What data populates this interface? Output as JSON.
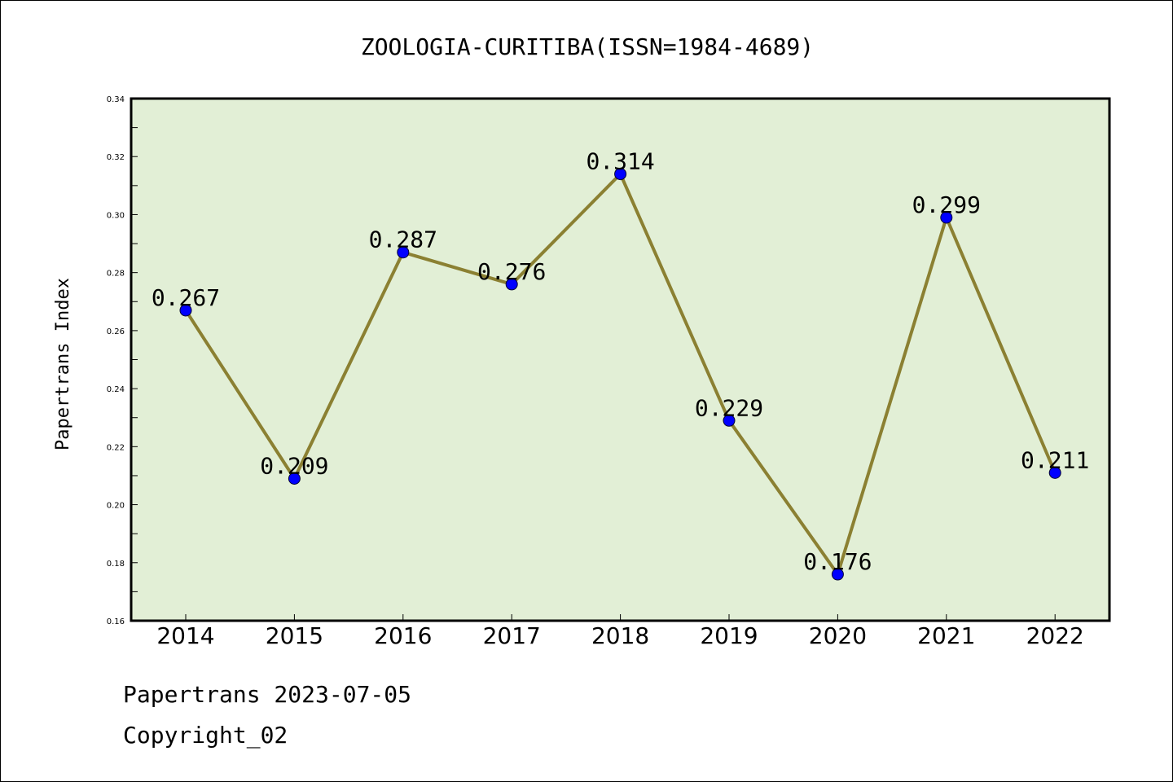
{
  "chart_data": {
    "type": "line",
    "title": "ZOOLOGIA-CURITIBA(ISSN=1984-4689)",
    "xlabel": "",
    "ylabel": "Papertrans Index",
    "categories": [
      "2014",
      "2015",
      "2016",
      "2017",
      "2018",
      "2019",
      "2020",
      "2021",
      "2022"
    ],
    "values": [
      0.267,
      0.209,
      0.287,
      0.276,
      0.314,
      0.229,
      0.176,
      0.299,
      0.211
    ],
    "data_labels": [
      "0.267",
      "0.209",
      "0.287",
      "0.276",
      "0.314",
      "0.229",
      "0.176",
      "0.299",
      "0.211"
    ],
    "ylim": [
      0.16,
      0.34
    ],
    "yticks": [
      "0.16",
      "0.18",
      "0.20",
      "0.22",
      "0.24",
      "0.26",
      "0.28",
      "0.30",
      "0.32",
      "0.34"
    ],
    "grid": false,
    "colors": {
      "plot_background": "#e2efd6",
      "line": "#8b8032",
      "marker": "#0000ff"
    }
  },
  "footer": {
    "line1": "Papertrans 2023-07-05",
    "line2": "Copyright_02"
  }
}
